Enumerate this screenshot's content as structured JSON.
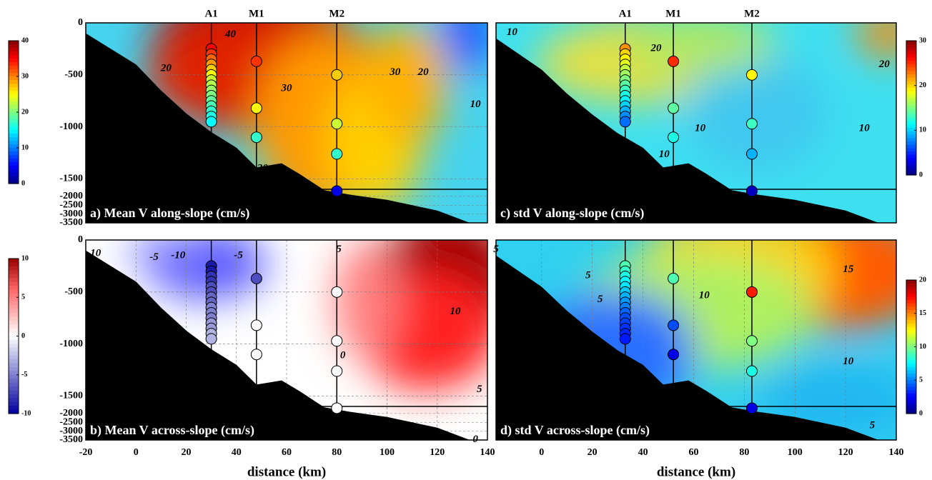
{
  "chart_data": [
    {
      "type": "contour",
      "title": "a) Mean V along-slope (cm/s)",
      "xlim": [
        -20,
        140
      ],
      "ylim": [
        -3500,
        0
      ],
      "yticks": [
        0,
        -500,
        -1000,
        -1500,
        -2000,
        -2500,
        -3000,
        -3500
      ],
      "colorbar": {
        "lim": [
          0,
          40
        ],
        "ticks": [
          40,
          30,
          20,
          10,
          0
        ],
        "colormap": "jet"
      },
      "moorings": [
        {
          "name": "A1",
          "x": 30
        },
        {
          "name": "M1",
          "x": 48
        },
        {
          "name": "M2",
          "x": 80
        }
      ],
      "contour_labels": [
        40,
        20,
        30,
        30,
        20,
        10,
        20
      ],
      "bathymetry": {
        "x": [
          -20,
          0,
          10,
          20,
          30,
          40,
          48,
          58,
          65,
          75,
          85,
          100,
          120,
          133
        ],
        "depth": [
          -100,
          -400,
          -650,
          -870,
          -1050,
          -1200,
          -1390,
          -1350,
          -1450,
          -1650,
          -1900,
          -2200,
          -2800,
          -3500
        ]
      },
      "instruments": {
        "x": [
          30,
          30,
          30,
          30,
          30,
          30,
          30,
          30,
          30,
          30,
          30,
          30,
          30,
          30,
          30,
          48,
          48,
          48,
          80,
          80,
          80,
          80
        ],
        "depth": [
          -250,
          -300,
          -350,
          -400,
          -450,
          -500,
          -550,
          -600,
          -650,
          -700,
          -750,
          -800,
          -850,
          -900,
          -950,
          -370,
          -820,
          -1100,
          -500,
          -970,
          -1260,
          -1700
        ],
        "values": [
          35,
          33,
          31,
          29,
          27,
          25,
          23,
          22,
          21,
          20,
          19,
          18,
          17,
          16,
          15,
          33,
          25,
          17,
          27,
          23,
          17,
          4
        ]
      }
    },
    {
      "type": "contour",
      "title": "b) Mean V across-slope (cm/s)",
      "xlim": [
        -20,
        140
      ],
      "ylim": [
        -3500,
        0
      ],
      "xticks": [
        -20,
        0,
        20,
        40,
        60,
        80,
        100,
        120,
        140
      ],
      "xlabel": "distance (km)",
      "yticks": [
        0,
        -500,
        -1000,
        -1500,
        -2000,
        -2500,
        -3000,
        -3500
      ],
      "colorbar": {
        "lim": [
          -10,
          10
        ],
        "ticks": [
          10,
          5,
          0,
          -5,
          -10
        ],
        "colormap": "bwr"
      },
      "mooring_x": [
        30,
        48,
        80
      ],
      "contour_labels": [
        -10,
        -5,
        -10,
        -5,
        5,
        10,
        0,
        5,
        0
      ],
      "bathymetry": {
        "x": [
          -20,
          0,
          10,
          20,
          30,
          40,
          48,
          58,
          65,
          75,
          85,
          100,
          120,
          133
        ],
        "depth": [
          -100,
          -400,
          -650,
          -870,
          -1050,
          -1200,
          -1390,
          -1350,
          -1450,
          -1650,
          -1900,
          -2200,
          -2800,
          -3500
        ]
      },
      "instruments": {
        "x": [
          30,
          30,
          30,
          30,
          30,
          30,
          30,
          30,
          30,
          30,
          30,
          30,
          30,
          30,
          30,
          48,
          48,
          48,
          80,
          80,
          80,
          80
        ],
        "depth": [
          -250,
          -300,
          -350,
          -400,
          -450,
          -500,
          -550,
          -600,
          -650,
          -700,
          -750,
          -800,
          -850,
          -900,
          -950,
          -370,
          -820,
          -1100,
          -500,
          -970,
          -1260,
          -1700
        ],
        "values": [
          -9,
          -9,
          -8,
          -8,
          -7,
          -7,
          -6,
          -6,
          -5,
          -5,
          -5,
          -4,
          -4,
          -3,
          -3,
          -7,
          0,
          0,
          0,
          0,
          0,
          0
        ]
      }
    },
    {
      "type": "contour",
      "title": "c) std V along-slope (cm/s)",
      "xlim": [
        -18,
        140
      ],
      "ylim": [
        -3500,
        0
      ],
      "colorbar": {
        "lim": [
          0,
          30
        ],
        "ticks": [
          30,
          20,
          10,
          0
        ],
        "colormap": "jet"
      },
      "moorings": [
        {
          "name": "A1",
          "x": 33
        },
        {
          "name": "M1",
          "x": 52
        },
        {
          "name": "M2",
          "x": 83
        }
      ],
      "contour_labels": [
        10,
        20,
        20,
        10,
        10,
        10
      ],
      "bathymetry": {
        "x": [
          -18,
          0,
          10,
          20,
          30,
          40,
          48,
          58,
          65,
          75,
          85,
          100,
          120,
          133
        ],
        "depth": [
          -150,
          -450,
          -680,
          -880,
          -1060,
          -1200,
          -1390,
          -1350,
          -1450,
          -1650,
          -1900,
          -2200,
          -2800,
          -3500
        ]
      },
      "instruments": {
        "x": [
          33,
          33,
          33,
          33,
          33,
          33,
          33,
          33,
          33,
          33,
          33,
          33,
          33,
          33,
          33,
          52,
          52,
          52,
          83,
          83,
          83,
          83
        ],
        "depth": [
          -250,
          -300,
          -350,
          -400,
          -450,
          -500,
          -550,
          -600,
          -650,
          -700,
          -750,
          -800,
          -850,
          -900,
          -950,
          -370,
          -820,
          -1100,
          -500,
          -970,
          -1260,
          -1700
        ],
        "values": [
          22,
          20,
          19,
          18,
          17,
          16,
          15,
          14,
          13,
          12,
          11,
          10,
          9,
          8,
          7,
          25,
          14,
          12,
          19,
          13,
          9,
          2
        ]
      }
    },
    {
      "type": "contour",
      "title": "d) std V across-slope (cm/s)",
      "xlim": [
        -18,
        140
      ],
      "ylim": [
        -3500,
        0
      ],
      "xticks": [
        0,
        20,
        40,
        60,
        80,
        100,
        120,
        140
      ],
      "xlabel": "distance (km)",
      "colorbar": {
        "lim": [
          0,
          20
        ],
        "ticks": [
          20,
          15,
          10,
          5,
          0
        ],
        "colormap": "jet"
      },
      "mooring_x": [
        33,
        52,
        83
      ],
      "contour_labels": [
        5,
        5,
        5,
        10,
        15,
        10,
        5
      ],
      "bathymetry": {
        "x": [
          -18,
          0,
          10,
          20,
          30,
          40,
          48,
          58,
          65,
          75,
          85,
          100,
          120,
          133
        ],
        "depth": [
          -150,
          -450,
          -680,
          -880,
          -1060,
          -1200,
          -1390,
          -1350,
          -1450,
          -1650,
          -1900,
          -2200,
          -2800,
          -3500
        ]
      },
      "instruments": {
        "x": [
          33,
          33,
          33,
          33,
          33,
          33,
          33,
          33,
          33,
          33,
          33,
          33,
          33,
          33,
          33,
          52,
          52,
          52,
          83,
          83,
          83,
          83
        ],
        "depth": [
          -250,
          -300,
          -350,
          -400,
          -450,
          -500,
          -550,
          -600,
          -650,
          -700,
          -750,
          -800,
          -850,
          -900,
          -950,
          -370,
          -820,
          -1100,
          -500,
          -970,
          -1260,
          -1700
        ],
        "values": [
          9,
          8.5,
          8,
          7.5,
          7,
          6.5,
          6,
          5.5,
          5,
          4.5,
          4,
          3.8,
          3.5,
          3.2,
          3,
          9,
          4,
          2,
          17,
          10,
          8,
          2
        ]
      }
    }
  ]
}
